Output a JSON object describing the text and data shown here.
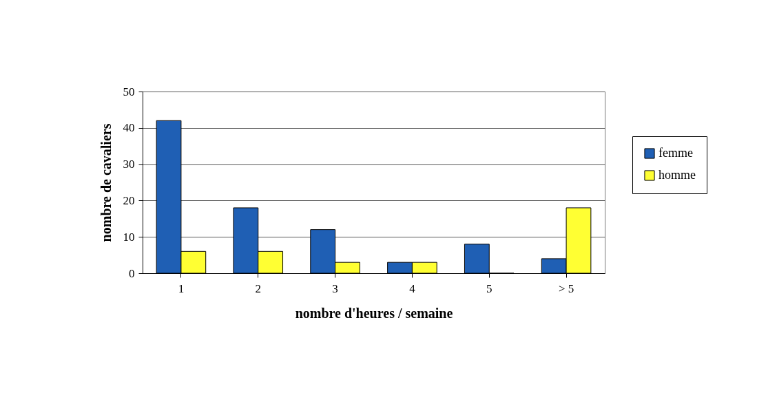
{
  "chart_data": {
    "type": "bar",
    "xlabel": "nombre d'heures / semaine",
    "ylabel": "nombre de cavaliers",
    "categories": [
      "1",
      "2",
      "3",
      "4",
      "5",
      "> 5"
    ],
    "series": [
      {
        "name": "femme",
        "color": "#1f5fb4",
        "values": [
          42,
          18,
          12,
          3,
          8,
          4
        ]
      },
      {
        "name": "homme",
        "color": "#ffff33",
        "values": [
          6,
          6,
          3,
          3,
          0,
          18
        ]
      }
    ],
    "ylim": [
      0,
      50
    ],
    "yticks": [
      0,
      10,
      20,
      30,
      40,
      50
    ],
    "grid": "y",
    "legend": "right"
  }
}
